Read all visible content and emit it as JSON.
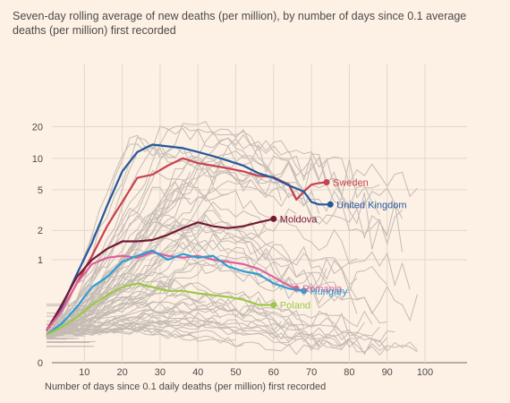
{
  "chart_data": {
    "type": "line",
    "title": "",
    "subtitle": "Seven-day rolling average of new deaths (per million), by number of days since 0.1 average deaths (per million) first recorded",
    "xlabel": "Number of days since 0.1 daily deaths (per million) first recorded",
    "ylabel": "",
    "y_scale": "log",
    "xlim": [
      0,
      112
    ],
    "ylim": [
      0,
      28
    ],
    "grid": true,
    "x_ticks": [
      "10",
      "20",
      "30",
      "40",
      "50",
      "60",
      "70",
      "80",
      "90",
      "100"
    ],
    "x_tick_values": [
      10,
      20,
      30,
      40,
      50,
      60,
      70,
      80,
      90,
      100
    ],
    "y_ticks": [
      "0",
      "1",
      "2",
      "5",
      "10",
      "20"
    ],
    "y_tick_values": [
      0,
      1,
      2,
      5,
      10,
      20
    ],
    "series": [
      {
        "name": "Sweden",
        "color": "#c9414f",
        "x": [
          0,
          4,
          8,
          12,
          16,
          20,
          24,
          28,
          32,
          36,
          40,
          44,
          48,
          52,
          56,
          60,
          64,
          66,
          68,
          70,
          72,
          74
        ],
        "values": [
          0.12,
          0.25,
          0.55,
          1.1,
          2.2,
          3.8,
          6.5,
          7.0,
          8.5,
          10.0,
          9.0,
          8.5,
          8.0,
          7.5,
          6.8,
          6.6,
          5.6,
          4.0,
          4.8,
          5.6,
          5.8,
          5.9
        ]
      },
      {
        "name": "United Kingdom",
        "color": "#23589c",
        "x": [
          0,
          4,
          8,
          12,
          16,
          20,
          24,
          28,
          32,
          36,
          40,
          44,
          48,
          52,
          56,
          60,
          64,
          68,
          70,
          72,
          75
        ],
        "values": [
          0.12,
          0.28,
          0.7,
          1.5,
          3.5,
          7.5,
          11.5,
          13.5,
          13.0,
          12.5,
          11.5,
          10.5,
          9.5,
          8.5,
          7.2,
          6.5,
          5.5,
          4.8,
          3.8,
          3.6,
          3.6
        ]
      },
      {
        "name": "Moldova",
        "color": "#731a34",
        "x": [
          0,
          4,
          8,
          12,
          16,
          20,
          24,
          28,
          32,
          36,
          40,
          44,
          48,
          52,
          56,
          60
        ],
        "values": [
          0.12,
          0.3,
          0.65,
          1.0,
          1.3,
          1.55,
          1.55,
          1.6,
          1.8,
          2.1,
          2.4,
          2.2,
          2.1,
          2.2,
          2.4,
          2.6
        ]
      },
      {
        "name": "Romania",
        "color": "#e0609b",
        "x": [
          0,
          4,
          8,
          12,
          16,
          20,
          24,
          28,
          32,
          36,
          40,
          44,
          48,
          52,
          56,
          60,
          64,
          66
        ],
        "values": [
          0.12,
          0.25,
          0.55,
          0.9,
          1.05,
          1.1,
          1.05,
          1.2,
          1.1,
          1.05,
          1.1,
          1.0,
          0.95,
          0.9,
          0.8,
          0.65,
          0.52,
          0.48
        ]
      },
      {
        "name": "Hungary",
        "color": "#2e9dd4",
        "x": [
          0,
          4,
          8,
          12,
          16,
          20,
          24,
          28,
          32,
          36,
          40,
          44,
          48,
          52,
          56,
          60,
          64,
          68
        ],
        "values": [
          0.1,
          0.16,
          0.28,
          0.5,
          0.65,
          0.95,
          1.1,
          1.25,
          1.0,
          1.15,
          1.05,
          1.1,
          0.85,
          0.75,
          0.7,
          0.55,
          0.48,
          0.45
        ]
      },
      {
        "name": "Poland",
        "color": "#9bc847",
        "x": [
          0,
          4,
          8,
          12,
          16,
          20,
          24,
          28,
          32,
          36,
          40,
          44,
          48,
          52,
          56,
          60
        ],
        "values": [
          0.1,
          0.14,
          0.2,
          0.3,
          0.4,
          0.5,
          0.55,
          0.5,
          0.45,
          0.45,
          0.42,
          0.4,
          0.38,
          0.35,
          0.3,
          0.3
        ]
      }
    ]
  }
}
